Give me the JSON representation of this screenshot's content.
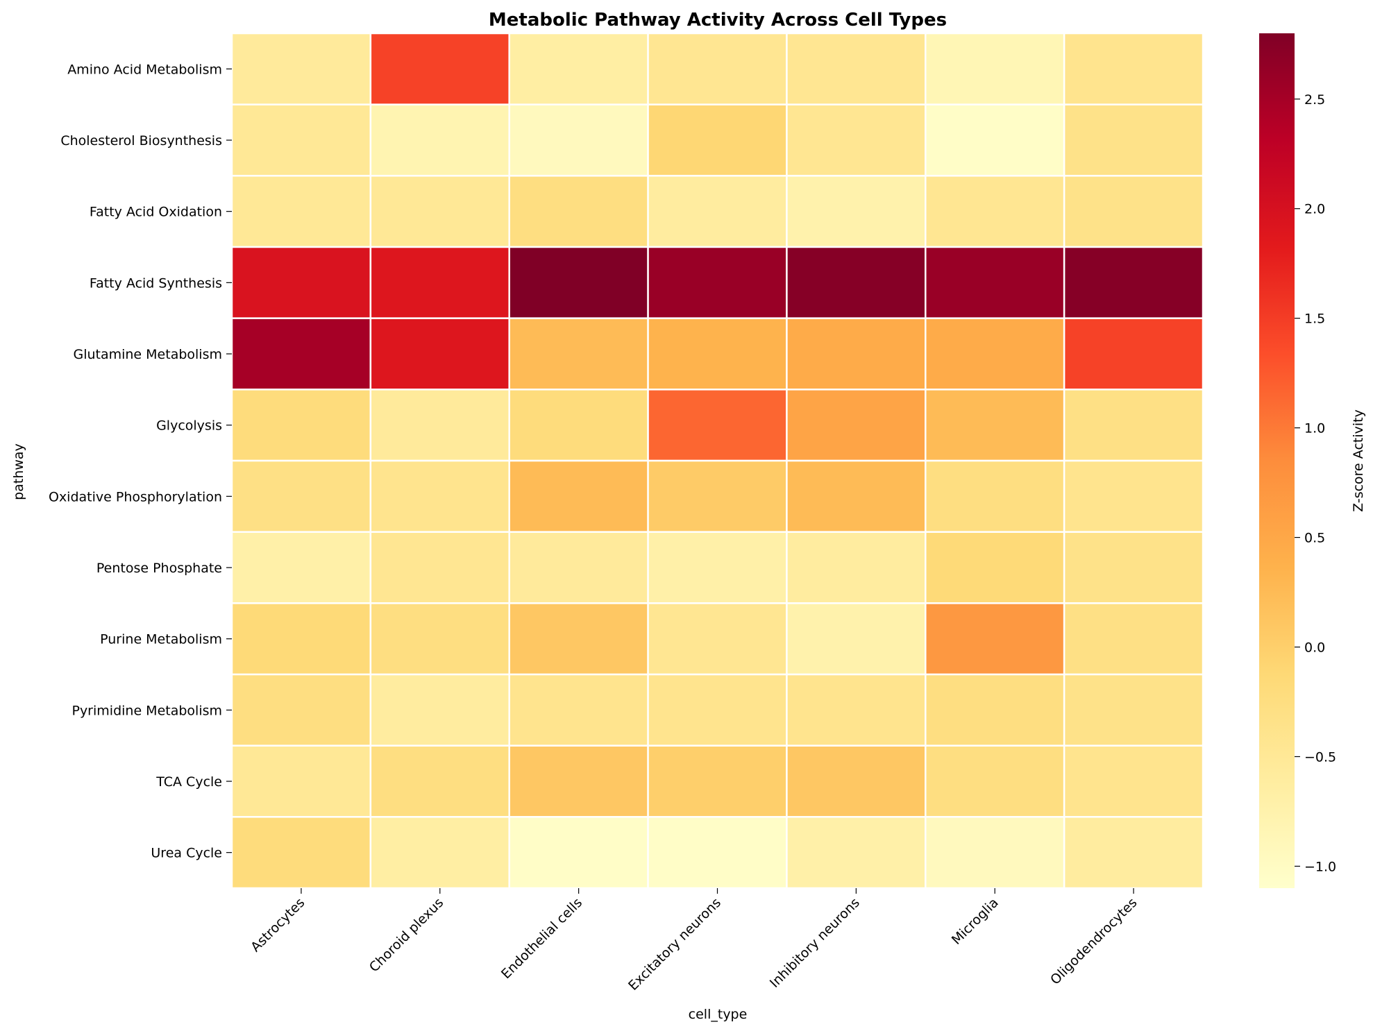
{
  "chart_data": {
    "type": "heatmap",
    "title": "Metabolic Pathway Activity Across Cell Types",
    "xlabel": "cell_type",
    "ylabel": "pathway",
    "colorbar_label": "Z-score Activity",
    "colormap": "YlOrRd",
    "vmin": -1.1,
    "vmax": 2.8,
    "colorbar_ticks": [
      -1.0,
      -0.5,
      0.0,
      0.5,
      1.0,
      1.5,
      2.0,
      2.5
    ],
    "colorbar_tick_labels": [
      "−1.0",
      "−0.5",
      "0.0",
      "0.5",
      "1.0",
      "1.5",
      "2.0",
      "2.5"
    ],
    "x_categories": [
      "Astrocytes",
      "Choroid plexus",
      "Endothelial cells",
      "Excitatory neurons",
      "Inhibitory neurons",
      "Microglia",
      "Oligodendrocytes"
    ],
    "y_categories": [
      "Amino Acid Metabolism",
      "Cholesterol Biosynthesis",
      "Fatty Acid Oxidation",
      "Fatty Acid Synthesis",
      "Glutamine Metabolism",
      "Glycolysis",
      "Oxidative Phosphorylation",
      "Pentose Phosphate",
      "Purine Metabolism",
      "Pyrimidine Metabolism",
      "TCA Cycle",
      "Urea Cycle"
    ],
    "values": [
      [
        -0.55,
        1.45,
        -0.65,
        -0.45,
        -0.45,
        -0.85,
        -0.4
      ],
      [
        -0.5,
        -0.8,
        -0.95,
        -0.1,
        -0.45,
        -1.05,
        -0.35
      ],
      [
        -0.5,
        -0.5,
        -0.25,
        -0.6,
        -0.75,
        -0.45,
        -0.35
      ],
      [
        1.95,
        1.9,
        2.8,
        2.6,
        2.75,
        2.6,
        2.75
      ],
      [
        2.5,
        1.9,
        0.25,
        0.35,
        0.45,
        0.45,
        1.45
      ],
      [
        -0.2,
        -0.55,
        -0.2,
        1.15,
        0.55,
        0.25,
        -0.3
      ],
      [
        -0.3,
        -0.4,
        0.25,
        0.05,
        0.25,
        -0.25,
        -0.4
      ],
      [
        -0.7,
        -0.45,
        -0.55,
        -0.7,
        -0.6,
        -0.15,
        -0.35
      ],
      [
        -0.15,
        -0.25,
        0.1,
        -0.45,
        -0.75,
        0.7,
        -0.3
      ],
      [
        -0.25,
        -0.6,
        -0.4,
        -0.4,
        -0.4,
        -0.25,
        -0.35
      ],
      [
        -0.5,
        -0.25,
        0.1,
        0.0,
        0.1,
        -0.25,
        -0.4
      ],
      [
        -0.2,
        -0.65,
        -1.05,
        -1.05,
        -0.7,
        -0.95,
        -0.6
      ]
    ]
  }
}
